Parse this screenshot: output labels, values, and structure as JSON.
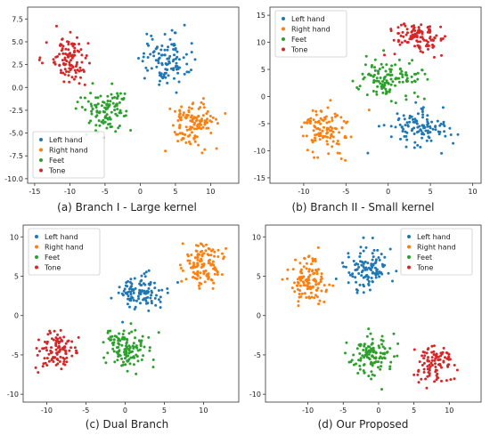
{
  "figure": {
    "captions": [
      "(a) Branch I - Large kernel",
      "(b) Branch II - Small kernel",
      "(c) Dual Branch",
      "(d) Our Proposed"
    ]
  },
  "legend_labels": [
    "Left hand",
    "Right hand",
    "Feet",
    "Tone"
  ],
  "colors": {
    "Left hand": "#1f77b4",
    "Right hand": "#ff7f0e",
    "Feet": "#2ca02c",
    "Tone": "#d62728"
  },
  "chart_data": [
    {
      "type": "scatter",
      "title": "",
      "caption": "(a) Branch I - Large kernel",
      "xlim": [
        -16,
        14
      ],
      "ylim": [
        -10.5,
        8.8
      ],
      "xticks": [
        -15,
        -10,
        -5,
        0,
        5,
        10
      ],
      "yticks": [
        -10.0,
        -7.5,
        -5.0,
        -2.5,
        0.0,
        2.5,
        5.0,
        7.5
      ],
      "ytick_labels": [
        "-10.0",
        "-7.5",
        "-5.0",
        "-2.5",
        "0.0",
        "2.5",
        "5.0",
        "7.5"
      ],
      "legend_position": "lower-left",
      "grid": false,
      "clusters": [
        {
          "name": "Left hand",
          "center": [
            3.5,
            3.0
          ],
          "spread": [
            3.0,
            2.6
          ],
          "n": 110
        },
        {
          "name": "Right hand",
          "center": [
            7.5,
            -4.0
          ],
          "spread": [
            2.8,
            2.4
          ],
          "n": 120
        },
        {
          "name": "Feet",
          "center": [
            -5.0,
            -2.5
          ],
          "spread": [
            3.0,
            2.3
          ],
          "n": 110
        },
        {
          "name": "Tone",
          "center": [
            -10.0,
            3.0
          ],
          "spread": [
            2.6,
            2.4
          ],
          "n": 110
        }
      ]
    },
    {
      "type": "scatter",
      "title": "",
      "caption": "(b) Branch II - Small kernel",
      "xlim": [
        -14,
        11
      ],
      "ylim": [
        -16,
        16.5
      ],
      "xticks": [
        -10,
        -5,
        0,
        5,
        10
      ],
      "yticks": [
        -15,
        -10,
        -5,
        0,
        5,
        10,
        15
      ],
      "ytick_labels": [
        "-15",
        "-10",
        "-5",
        "0",
        "5",
        "10",
        "15"
      ],
      "legend_position": "top-left",
      "grid": false,
      "clusters": [
        {
          "name": "Left hand",
          "center": [
            3.5,
            -6.0
          ],
          "spread": [
            3.3,
            3.0
          ],
          "n": 110
        },
        {
          "name": "Right hand",
          "center": [
            -7.5,
            -6.0
          ],
          "spread": [
            2.8,
            3.8
          ],
          "n": 110
        },
        {
          "name": "Feet",
          "center": [
            0.5,
            3.5
          ],
          "spread": [
            3.8,
            3.5
          ],
          "n": 120
        },
        {
          "name": "Tone",
          "center": [
            3.5,
            11.0
          ],
          "spread": [
            3.0,
            2.5
          ],
          "n": 110
        }
      ]
    },
    {
      "type": "scatter",
      "title": "",
      "caption": "(c) Dual Branch",
      "xlim": [
        -13,
        14.5
      ],
      "ylim": [
        -11,
        11.5
      ],
      "xticks": [
        -10,
        -5,
        0,
        5,
        10
      ],
      "yticks": [
        -10,
        -5,
        0,
        5,
        10
      ],
      "ytick_labels": [
        "-10",
        "-5",
        "0",
        "5",
        "10"
      ],
      "legend_position": "top-left",
      "grid": false,
      "clusters": [
        {
          "name": "Left hand",
          "center": [
            2.0,
            3.0
          ],
          "spread": [
            2.8,
            2.0
          ],
          "n": 110
        },
        {
          "name": "Right hand",
          "center": [
            10.0,
            6.5
          ],
          "spread": [
            2.3,
            2.3
          ],
          "n": 120
        },
        {
          "name": "Feet",
          "center": [
            0.0,
            -4.0
          ],
          "spread": [
            3.0,
            2.4
          ],
          "n": 120
        },
        {
          "name": "Tone",
          "center": [
            -8.5,
            -4.5
          ],
          "spread": [
            2.3,
            2.2
          ],
          "n": 100
        }
      ]
    },
    {
      "type": "scatter",
      "title": "",
      "caption": "(d) Our Proposed",
      "xlim": [
        -16,
        14.5
      ],
      "ylim": [
        -11,
        11.5
      ],
      "xticks": [
        -10,
        -5,
        0,
        5,
        10
      ],
      "yticks": [
        -10,
        -5,
        0,
        5,
        10
      ],
      "ytick_labels": [
        "-10",
        "-5",
        "0",
        "5",
        "10"
      ],
      "legend_position": "top-right",
      "grid": false,
      "clusters": [
        {
          "name": "Left hand",
          "center": [
            -1.5,
            6.0
          ],
          "spread": [
            3.0,
            2.4
          ],
          "n": 110
        },
        {
          "name": "Right hand",
          "center": [
            -10.0,
            4.5
          ],
          "spread": [
            2.3,
            3.0
          ],
          "n": 120
        },
        {
          "name": "Feet",
          "center": [
            -1.0,
            -5.0
          ],
          "spread": [
            2.8,
            2.3
          ],
          "n": 120
        },
        {
          "name": "Tone",
          "center": [
            8.0,
            -6.0
          ],
          "spread": [
            2.3,
            2.3
          ],
          "n": 100
        }
      ]
    }
  ]
}
